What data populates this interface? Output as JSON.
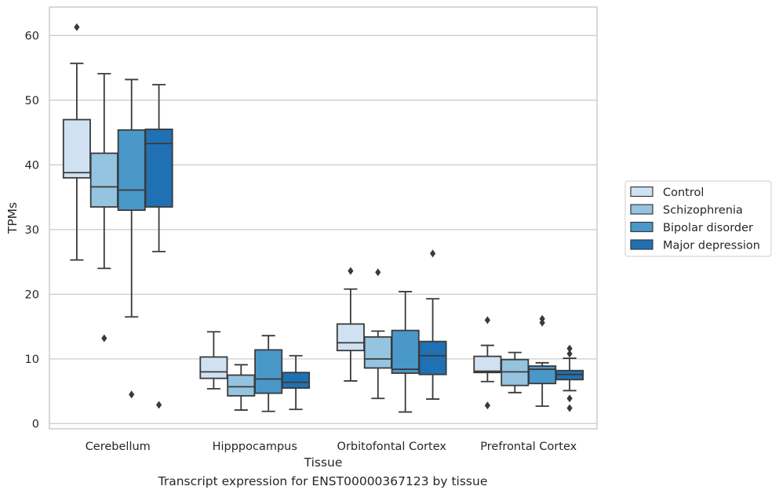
{
  "caption": "Transcript expression for ENST00000367123 by tissue",
  "chart_data": {
    "type": "boxplot",
    "xlabel": "Tissue",
    "ylabel": "TPMs",
    "ylim": [
      -0.8,
      64.4
    ],
    "yticks": [
      0,
      10,
      20,
      30,
      40,
      50,
      60
    ],
    "grid": "horizontal",
    "legend_position": "right",
    "categories": [
      "Cerebellum",
      "Hipppocampus",
      "Orbitofontal Cortex",
      "Prefrontal Cortex"
    ],
    "series": [
      {
        "name": "Control",
        "color": "#d0e1f2",
        "boxes": [
          {
            "whislo": 25.3,
            "q1": 38.0,
            "med": 38.8,
            "q3": 47.0,
            "whishi": 55.7,
            "fliers": [
              61.3
            ]
          },
          {
            "whislo": 5.4,
            "q1": 7.0,
            "med": 8.0,
            "q3": 10.3,
            "whishi": 14.2,
            "fliers": []
          },
          {
            "whislo": 6.6,
            "q1": 11.3,
            "med": 12.5,
            "q3": 15.4,
            "whishi": 20.8,
            "fliers": [
              23.6
            ]
          },
          {
            "whislo": 6.5,
            "q1": 7.9,
            "med": 8.1,
            "q3": 10.4,
            "whishi": 12.1,
            "fliers": [
              16.0,
              2.8
            ]
          }
        ]
      },
      {
        "name": "Schizophrenia",
        "color": "#94c4df",
        "boxes": [
          {
            "whislo": 24.0,
            "q1": 33.5,
            "med": 36.6,
            "q3": 41.8,
            "whishi": 54.1,
            "fliers": [
              13.2
            ]
          },
          {
            "whislo": 2.1,
            "q1": 4.3,
            "med": 5.7,
            "q3": 7.5,
            "whishi": 9.1,
            "fliers": []
          },
          {
            "whislo": 3.9,
            "q1": 8.6,
            "med": 10.0,
            "q3": 13.4,
            "whishi": 14.3,
            "fliers": [
              23.4
            ]
          },
          {
            "whislo": 4.8,
            "q1": 5.9,
            "med": 8.0,
            "q3": 9.9,
            "whishi": 11.0,
            "fliers": []
          }
        ]
      },
      {
        "name": "Bipolar disorder",
        "color": "#4a98c9",
        "boxes": [
          {
            "whislo": 16.5,
            "q1": 33.0,
            "med": 36.1,
            "q3": 45.4,
            "whishi": 53.2,
            "fliers": [
              4.5
            ]
          },
          {
            "whislo": 1.9,
            "q1": 4.7,
            "med": 6.9,
            "q3": 11.4,
            "whishi": 13.6,
            "fliers": []
          },
          {
            "whislo": 1.8,
            "q1": 7.8,
            "med": 8.4,
            "q3": 14.4,
            "whishi": 20.4,
            "fliers": []
          },
          {
            "whislo": 2.7,
            "q1": 6.2,
            "med": 8.4,
            "q3": 8.9,
            "whishi": 9.4,
            "fliers": [
              16.2,
              15.6
            ]
          }
        ]
      },
      {
        "name": "Major depression",
        "color": "#2070b4",
        "boxes": [
          {
            "whislo": 26.6,
            "q1": 33.5,
            "med": 43.3,
            "q3": 45.5,
            "whishi": 52.4,
            "fliers": [
              2.9
            ]
          },
          {
            "whislo": 2.2,
            "q1": 5.5,
            "med": 6.4,
            "q3": 7.9,
            "whishi": 10.5,
            "fliers": []
          },
          {
            "whislo": 3.8,
            "q1": 7.6,
            "med": 10.5,
            "q3": 12.7,
            "whishi": 19.3,
            "fliers": [
              26.3
            ]
          },
          {
            "whislo": 5.1,
            "q1": 6.8,
            "med": 7.6,
            "q3": 8.2,
            "whishi": 10.1,
            "fliers": [
              11.6,
              10.8,
              3.9,
              2.4
            ]
          }
        ]
      }
    ]
  }
}
